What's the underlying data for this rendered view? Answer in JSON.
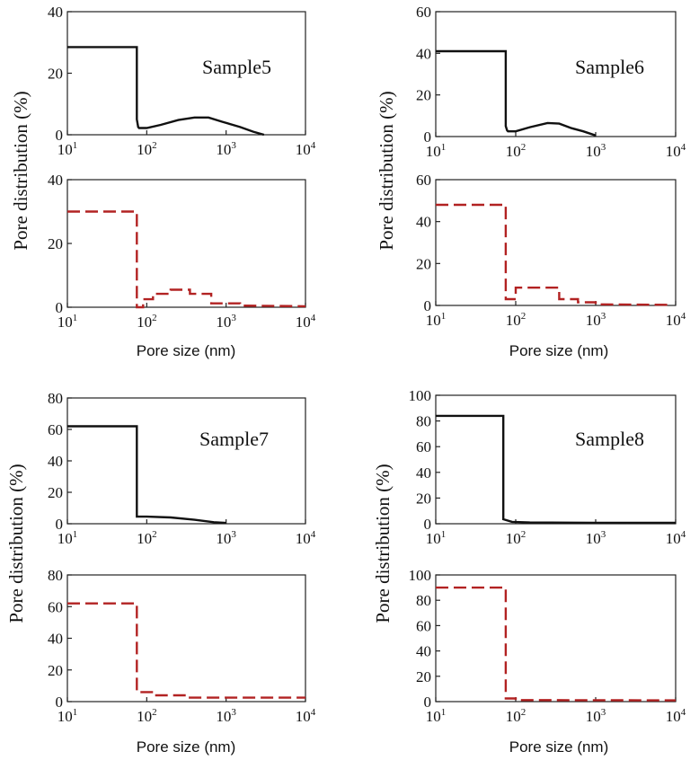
{
  "figure": {
    "ylabel": "Pore distribution (%)",
    "xlabel": "Pore size (nm)"
  },
  "chart_data": [
    {
      "type": "line",
      "sample": "Sample5",
      "ylim": [
        0,
        40
      ],
      "yticks": [
        0,
        20,
        40
      ],
      "xscale": "log",
      "xlim": [
        10,
        10000
      ],
      "xticks": [
        {
          "v": 10,
          "b": "10",
          "e": "1"
        },
        {
          "v": 100,
          "b": "10",
          "e": "2"
        },
        {
          "v": 1000,
          "b": "10",
          "e": "3"
        },
        {
          "v": 10000,
          "b": "10",
          "e": "4"
        }
      ],
      "series": [
        {
          "style": "solid",
          "color": "#111111",
          "x": [
            10,
            75,
            75,
            78,
            80,
            100,
            150,
            250,
            400,
            600,
            900,
            1500,
            2200,
            3000
          ],
          "y": [
            28.5,
            28.5,
            5,
            2.5,
            2.2,
            2.2,
            3.2,
            4.8,
            5.6,
            5.6,
            4.2,
            2.5,
            1.0,
            0
          ]
        }
      ]
    },
    {
      "type": "line",
      "sample": "Sample6",
      "ylim": [
        0,
        60
      ],
      "yticks": [
        0,
        20,
        40,
        60
      ],
      "xscale": "log",
      "xlim": [
        10,
        10000
      ],
      "xticks": [
        {
          "v": 10,
          "b": "10",
          "e": "1"
        },
        {
          "v": 100,
          "b": "10",
          "e": "2"
        },
        {
          "v": 1000,
          "b": "10",
          "e": "3"
        },
        {
          "v": 10000,
          "b": "10",
          "e": "4"
        }
      ],
      "series": [
        {
          "style": "solid",
          "color": "#111111",
          "x": [
            10,
            75,
            75,
            78,
            80,
            100,
            150,
            250,
            350,
            500,
            700,
            1000
          ],
          "y": [
            41,
            41,
            5,
            3,
            2.5,
            2.5,
            4.5,
            6.5,
            6.2,
            4.0,
            2.5,
            0.5
          ]
        }
      ]
    },
    {
      "type": "line",
      "ylim": [
        0,
        40
      ],
      "yticks": [
        0,
        20,
        40
      ],
      "xscale": "log",
      "xlim": [
        10,
        10000
      ],
      "xticks": [
        {
          "v": 10,
          "b": "10",
          "e": "1"
        },
        {
          "v": 100,
          "b": "10",
          "e": "2"
        },
        {
          "v": 1000,
          "b": "10",
          "e": "3"
        },
        {
          "v": 10000,
          "b": "10",
          "e": "4"
        }
      ],
      "series": [
        {
          "style": "dashed",
          "color": "#b22222",
          "x": [
            10,
            75,
            75,
            90,
            90,
            120,
            120,
            200,
            200,
            350,
            350,
            650,
            650,
            1500,
            1500,
            10000
          ],
          "y": [
            30,
            30,
            0,
            0,
            2.5,
            2.5,
            4.2,
            4.2,
            5.5,
            5.5,
            4.2,
            4.2,
            1.2,
            1.2,
            0.5,
            0.3
          ]
        }
      ]
    },
    {
      "type": "line",
      "ylim": [
        0,
        60
      ],
      "yticks": [
        0,
        20,
        40,
        60
      ],
      "xscale": "log",
      "xlim": [
        10,
        10000
      ],
      "xticks": [
        {
          "v": 10,
          "b": "10",
          "e": "1"
        },
        {
          "v": 100,
          "b": "10",
          "e": "2"
        },
        {
          "v": 1000,
          "b": "10",
          "e": "3"
        },
        {
          "v": 10000,
          "b": "10",
          "e": "4"
        }
      ],
      "series": [
        {
          "style": "dashed",
          "color": "#b22222",
          "x": [
            10,
            75,
            75,
            100,
            100,
            350,
            350,
            600,
            600,
            1000,
            1000,
            8000
          ],
          "y": [
            48,
            48,
            3,
            3,
            8.5,
            8.5,
            3.0,
            3.0,
            1.5,
            1.5,
            0.5,
            0.3
          ]
        }
      ]
    },
    {
      "type": "line",
      "sample": "Sample7",
      "ylim": [
        0,
        80
      ],
      "yticks": [
        0,
        20,
        40,
        60,
        80
      ],
      "xscale": "log",
      "xlim": [
        10,
        10000
      ],
      "xticks": [
        {
          "v": 10,
          "b": "10",
          "e": "1"
        },
        {
          "v": 100,
          "b": "10",
          "e": "2"
        },
        {
          "v": 1000,
          "b": "10",
          "e": "3"
        },
        {
          "v": 10000,
          "b": "10",
          "e": "4"
        }
      ],
      "series": [
        {
          "style": "solid",
          "color": "#111111",
          "x": [
            10,
            75,
            75,
            100,
            200,
            400,
            700,
            1000
          ],
          "y": [
            62,
            62,
            4.5,
            4.5,
            4.0,
            2.5,
            1.0,
            0.5
          ]
        }
      ]
    },
    {
      "type": "line",
      "sample": "Sample8",
      "ylim": [
        0,
        100
      ],
      "yticks": [
        0,
        20,
        40,
        60,
        80,
        100
      ],
      "xscale": "log",
      "xlim": [
        10,
        10000
      ],
      "xticks": [
        {
          "v": 10,
          "b": "10",
          "e": "1"
        },
        {
          "v": 100,
          "b": "10",
          "e": "2"
        },
        {
          "v": 1000,
          "b": "10",
          "e": "3"
        },
        {
          "v": 10000,
          "b": "10",
          "e": "4"
        }
      ],
      "series": [
        {
          "style": "solid",
          "color": "#111111",
          "x": [
            10,
            70,
            70,
            90,
            150,
            1000,
            10000
          ],
          "y": [
            84,
            84,
            3.5,
            1.5,
            1.0,
            0.8,
            0.7
          ]
        }
      ]
    },
    {
      "type": "line",
      "ylim": [
        0,
        80
      ],
      "yticks": [
        0,
        20,
        40,
        60,
        80
      ],
      "xscale": "log",
      "xlim": [
        10,
        10000
      ],
      "xticks": [
        {
          "v": 10,
          "b": "10",
          "e": "1"
        },
        {
          "v": 100,
          "b": "10",
          "e": "2"
        },
        {
          "v": 1000,
          "b": "10",
          "e": "3"
        },
        {
          "v": 10000,
          "b": "10",
          "e": "4"
        }
      ],
      "series": [
        {
          "style": "dashed",
          "color": "#b22222",
          "x": [
            10,
            75,
            75,
            120,
            120,
            300,
            300,
            10000
          ],
          "y": [
            62,
            62,
            6,
            6,
            4,
            4,
            2.5,
            2.5
          ]
        }
      ]
    },
    {
      "type": "line",
      "ylim": [
        0,
        100
      ],
      "yticks": [
        0,
        20,
        40,
        60,
        80,
        100
      ],
      "xscale": "log",
      "xlim": [
        10,
        10000
      ],
      "xticks": [
        {
          "v": 10,
          "b": "10",
          "e": "1"
        },
        {
          "v": 100,
          "b": "10",
          "e": "2"
        },
        {
          "v": 1000,
          "b": "10",
          "e": "3"
        },
        {
          "v": 10000,
          "b": "10",
          "e": "4"
        }
      ],
      "series": [
        {
          "style": "dashed",
          "color": "#b22222",
          "x": [
            10,
            75,
            75,
            100,
            100,
            10000
          ],
          "y": [
            90,
            90,
            2.5,
            2.5,
            1.2,
            1.0
          ]
        }
      ]
    }
  ]
}
